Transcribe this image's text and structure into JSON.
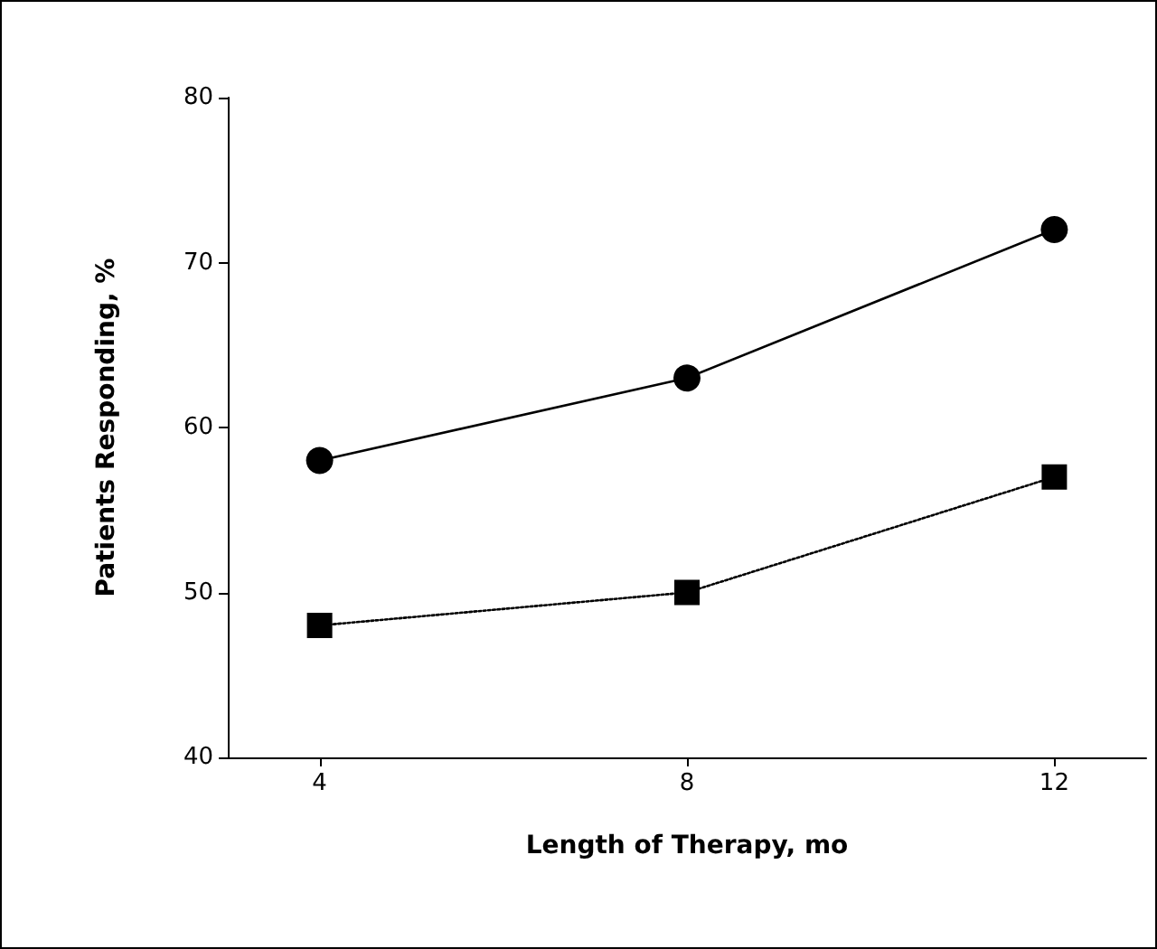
{
  "chart_data": {
    "type": "line",
    "xlabel": "Length of Therapy, mo",
    "ylabel": "Patients Responding, %",
    "x": [
      4,
      8,
      12
    ],
    "series": [
      {
        "color": "#000000",
        "values": [
          58,
          63,
          72
        ],
        "marker": "circle",
        "line_style": "solid"
      },
      {
        "color": "#000000",
        "values": [
          48,
          50,
          57
        ],
        "marker": "square",
        "line_style": "dotted"
      }
    ],
    "xlim": [
      3,
      13
    ],
    "xticks": [
      4,
      8,
      12
    ],
    "ylim": [
      40,
      80
    ],
    "yticks": [
      40,
      50,
      60,
      70,
      80
    ],
    "grid": false
  }
}
